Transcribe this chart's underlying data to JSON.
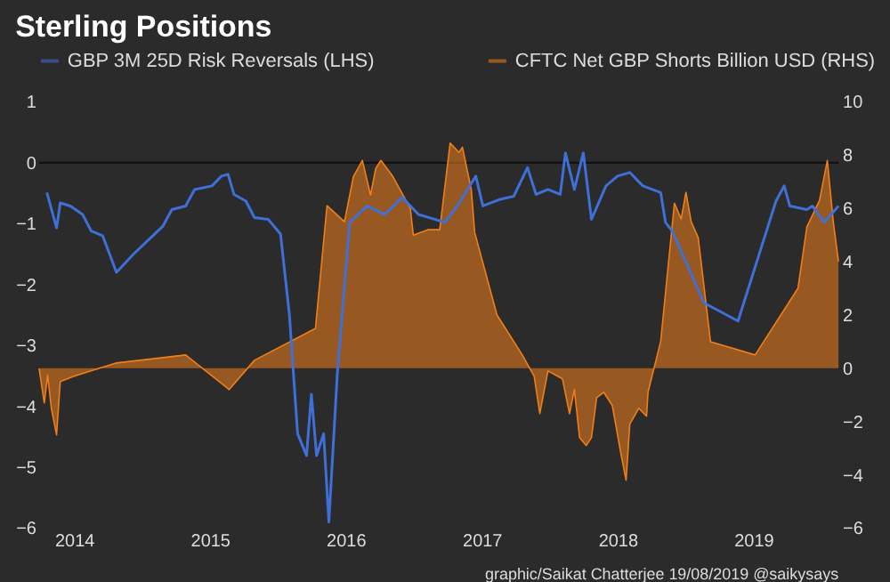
{
  "chart_data": {
    "type": "line",
    "title": "Sterling Positions",
    "annotations": [
      "graphic/Saikat Chatterjee 19/08/2019 @saikysays"
    ],
    "xlim": [
      "2013-09-29",
      "2019-08-18"
    ],
    "xticks": [
      {
        "value": "2014-01-01",
        "label": "2014"
      },
      {
        "value": "2015-01-01",
        "label": "2015"
      },
      {
        "value": "2016-01-01",
        "label": "2016"
      },
      {
        "value": "2017-01-01",
        "label": "2017"
      },
      {
        "value": "2018-01-01",
        "label": "2018"
      },
      {
        "value": "2019-01-01",
        "label": "2019"
      }
    ],
    "ylim": [
      -6,
      1
    ],
    "yticks": [
      -6,
      -5,
      -4,
      -3,
      -2,
      -1,
      0,
      1
    ],
    "y2lim": [
      -6,
      10
    ],
    "y2ticks": [
      -6,
      -4,
      -2,
      0,
      2,
      4,
      6,
      8,
      10
    ],
    "legend": "top",
    "grid": false,
    "ref_lines": [
      {
        "axis": "y",
        "value": 0,
        "color": "#111111"
      }
    ],
    "series": [
      {
        "name": "GBP 3M 25D Risk Reversals (LHS)",
        "type": "line",
        "color": "#3f6fd8",
        "x": [
          "2013-10-20",
          "2013-11-15",
          "2013-11-25",
          "2013-12-22",
          "2014-01-24",
          "2014-02-16",
          "2014-03-19",
          "2014-04-25",
          "2014-06-10",
          "2014-08-28",
          "2014-09-21",
          "2014-10-28",
          "2014-11-21",
          "2015-01-07",
          "2015-02-01",
          "2015-02-19",
          "2015-03-07",
          "2015-04-08",
          "2015-05-01",
          "2015-06-07",
          "2015-07-10",
          "2015-08-03",
          "2015-08-25",
          "2015-09-18",
          "2015-10-01",
          "2015-10-15",
          "2015-11-03",
          "2015-11-17",
          "2015-12-10",
          "2016-01-12",
          "2016-02-28",
          "2016-04-15",
          "2016-06-01",
          "2016-07-15",
          "2016-09-24",
          "2016-10-27",
          "2016-12-16",
          "2017-01-04",
          "2017-02-20",
          "2017-03-28",
          "2017-05-04",
          "2017-05-27",
          "2017-06-28",
          "2017-07-31",
          "2017-08-14",
          "2017-09-07",
          "2017-10-01",
          "2017-10-23",
          "2017-12-01",
          "2018-01-01",
          "2018-02-03",
          "2018-03-10",
          "2018-04-27",
          "2018-05-10",
          "2018-05-28",
          "2018-08-21",
          "2018-11-21",
          "2019-03-03",
          "2019-03-25",
          "2019-04-09",
          "2019-05-25",
          "2019-06-09",
          "2019-07-10",
          "2019-08-18"
        ],
        "values": [
          -0.49,
          -1.07,
          -0.66,
          -0.71,
          -0.85,
          -1.12,
          -1.2,
          -1.8,
          -1.5,
          -1.04,
          -0.77,
          -0.71,
          -0.44,
          -0.38,
          -0.22,
          -0.19,
          -0.52,
          -0.63,
          -0.9,
          -0.93,
          -1.17,
          -2.5,
          -4.45,
          -4.81,
          -3.8,
          -4.81,
          -4.45,
          -5.9,
          -3.44,
          -0.98,
          -0.71,
          -0.85,
          -0.57,
          -0.85,
          -0.98,
          -0.71,
          -0.22,
          -0.71,
          -0.6,
          -0.55,
          -0.08,
          -0.52,
          -0.44,
          -0.52,
          0.16,
          -0.44,
          0.16,
          -0.93,
          -0.38,
          -0.22,
          -0.16,
          -0.38,
          -0.49,
          -0.98,
          -1.12,
          -2.3,
          -2.6,
          -0.63,
          -0.38,
          -0.71,
          -0.77,
          -0.71,
          -0.98,
          -0.71
        ]
      },
      {
        "name": "CFTC Net GBP Shorts Billion USD (RHS)",
        "type": "area",
        "axis": "y2",
        "color": "#f07f1a",
        "x": [
          "2013-09-29",
          "2013-10-13",
          "2013-10-22",
          "2013-11-01",
          "2013-11-15",
          "2013-11-25",
          "2014-01-01",
          "2014-04-25",
          "2014-10-28",
          "2015-02-22",
          "2015-05-01",
          "2015-10-12",
          "2015-11-12",
          "2015-12-29",
          "2016-01-22",
          "2016-02-15",
          "2016-03-08",
          "2016-03-22",
          "2016-04-05",
          "2016-05-07",
          "2016-06-23",
          "2016-07-01",
          "2016-08-09",
          "2016-09-10",
          "2016-10-08",
          "2016-11-01",
          "2016-11-10",
          "2016-12-04",
          "2016-12-13",
          "2017-02-11",
          "2017-04-20",
          "2017-05-22",
          "2017-06-06",
          "2017-06-28",
          "2017-08-06",
          "2017-08-25",
          "2017-09-07",
          "2017-09-21",
          "2017-10-09",
          "2017-10-23",
          "2017-11-06",
          "2017-11-25",
          "2017-12-18",
          "2018-01-10",
          "2018-01-24",
          "2018-02-03",
          "2018-02-27",
          "2018-03-20",
          "2018-03-24",
          "2018-04-27",
          "2018-06-03",
          "2018-06-21",
          "2018-07-04",
          "2018-07-18",
          "2018-08-06",
          "2018-09-08",
          "2019-01-06",
          "2019-05-01",
          "2019-05-25",
          "2019-06-28",
          "2019-07-19",
          "2019-08-04",
          "2019-08-18"
        ],
        "values": [
          0,
          -1.3,
          -0.25,
          -1.5,
          -2.5,
          -0.5,
          -0.3,
          0.2,
          0.5,
          -0.8,
          0.3,
          1.5,
          6.1,
          5.5,
          7.2,
          7.8,
          6.5,
          7.5,
          7.8,
          7.2,
          6.0,
          5.0,
          5.2,
          5.2,
          8.45,
          8.1,
          8.3,
          6.7,
          5.1,
          2.0,
          0.5,
          -0.3,
          -1.7,
          -0.1,
          -0.4,
          -1.7,
          -0.8,
          -2.6,
          -2.9,
          -2.6,
          -1.1,
          -0.9,
          -1.4,
          -3.2,
          -4.2,
          -2.1,
          -1.5,
          -1.8,
          -0.9,
          1.0,
          6.2,
          5.6,
          6.6,
          5.5,
          4.9,
          1.0,
          0.5,
          3.0,
          5.3,
          6.3,
          7.8,
          5.5,
          4.0
        ]
      }
    ]
  }
}
